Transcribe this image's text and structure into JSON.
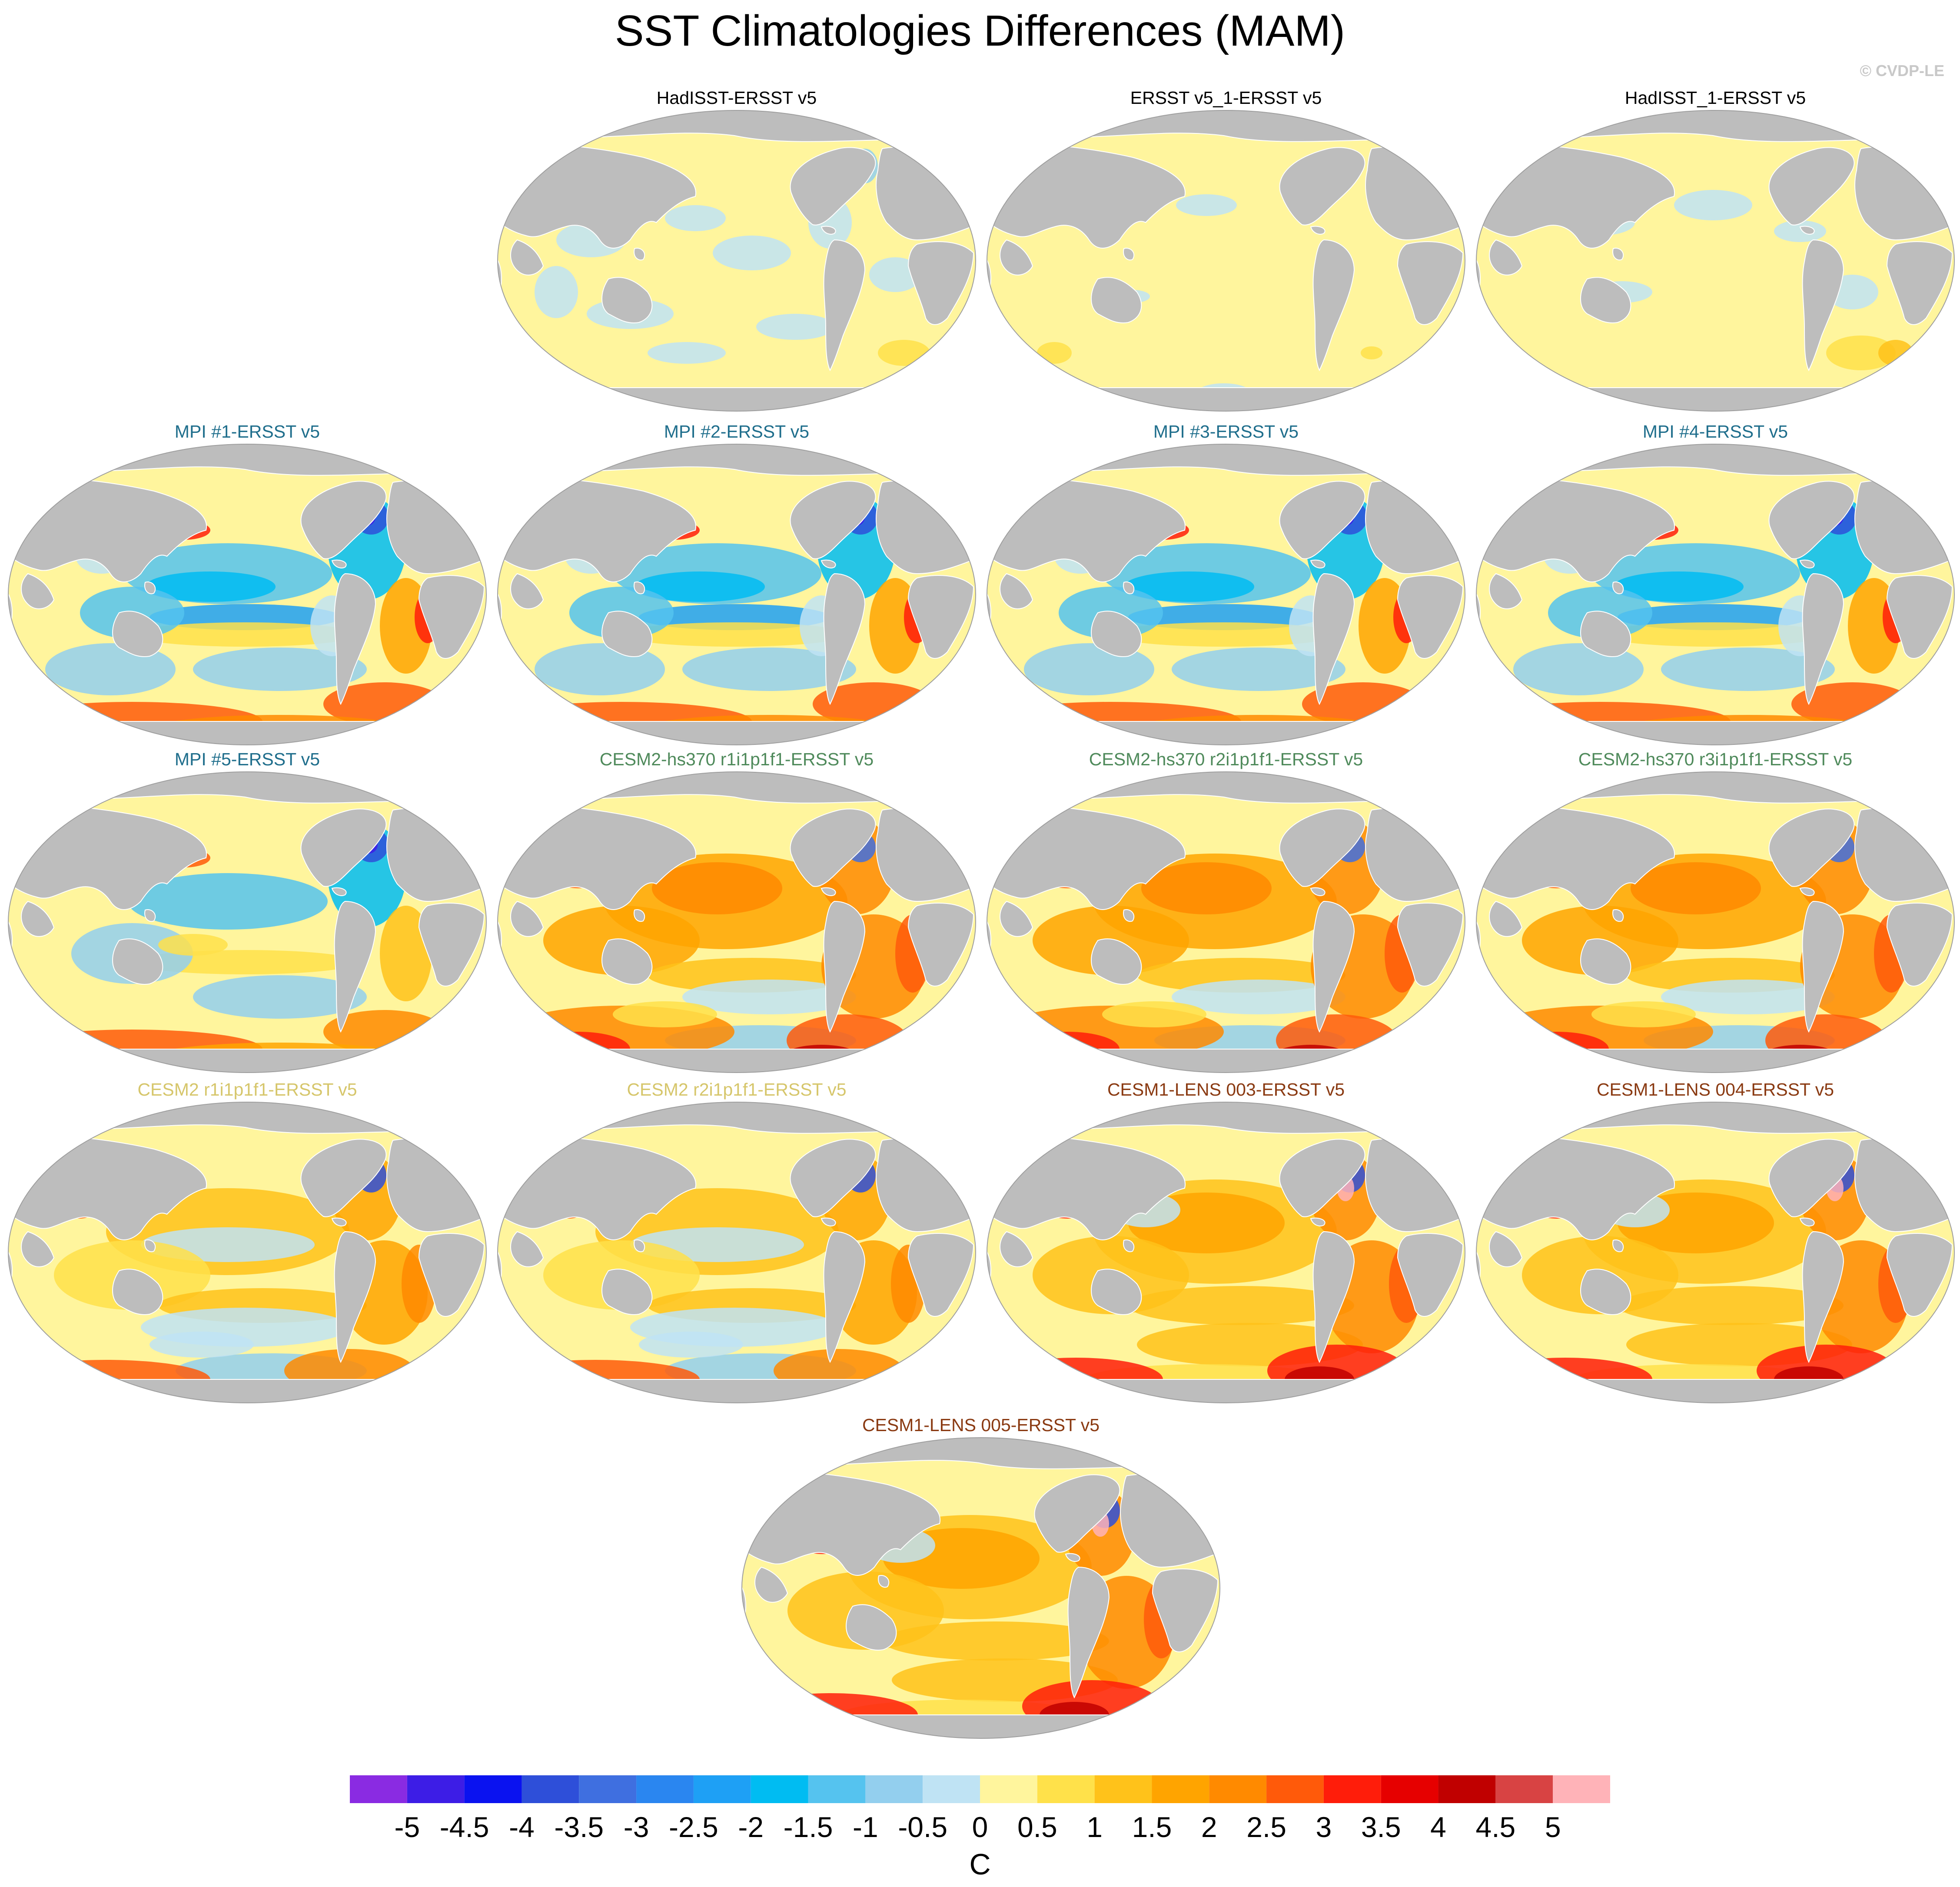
{
  "title": "SST Climatologies Differences (MAM)",
  "copyright": "© CVDP-LE",
  "colors": {
    "land": "#bdbdbd",
    "ocean_default": "#fff59d",
    "title_obs": "#000000",
    "title_mpi": "#1f6e8c",
    "title_cesm2hs": "#4f8a5b",
    "title_cesm2": "#d6c66b",
    "title_cesm1": "#8a3a12"
  },
  "panels": [
    {
      "title": "HadISST-ERSST v5",
      "group": "obs",
      "pattern": "hadisst"
    },
    {
      "title": "ERSST v5_1-ERSST v5",
      "group": "obs",
      "pattern": "ersst"
    },
    {
      "title": "HadISST_1-ERSST v5",
      "group": "obs",
      "pattern": "hadisst1"
    },
    {
      "title": "MPI #1-ERSST v5",
      "group": "mpi",
      "pattern": "mpi"
    },
    {
      "title": "MPI #2-ERSST v5",
      "group": "mpi",
      "pattern": "mpi"
    },
    {
      "title": "MPI #3-ERSST v5",
      "group": "mpi",
      "pattern": "mpi"
    },
    {
      "title": "MPI #4-ERSST v5",
      "group": "mpi",
      "pattern": "mpi"
    },
    {
      "title": "MPI #5-ERSST v5",
      "group": "mpi",
      "pattern": "mpi5"
    },
    {
      "title": "CESM2-hs370 r1i1p1f1-ERSST v5",
      "group": "cesm2hs",
      "pattern": "cesm2hs"
    },
    {
      "title": "CESM2-hs370 r2i1p1f1-ERSST v5",
      "group": "cesm2hs",
      "pattern": "cesm2hs"
    },
    {
      "title": "CESM2-hs370 r3i1p1f1-ERSST v5",
      "group": "cesm2hs",
      "pattern": "cesm2hs"
    },
    {
      "title": "CESM2 r1i1p1f1-ERSST v5",
      "group": "cesm2",
      "pattern": "cesm2"
    },
    {
      "title": "CESM2 r2i1p1f1-ERSST v5",
      "group": "cesm2",
      "pattern": "cesm2"
    },
    {
      "title": "CESM1-LENS 003-ERSST v5",
      "group": "cesm1",
      "pattern": "cesm1"
    },
    {
      "title": "CESM1-LENS 004-ERSST v5",
      "group": "cesm1",
      "pattern": "cesm1"
    },
    {
      "title": "CESM1-LENS 005-ERSST v5",
      "group": "cesm1",
      "pattern": "cesm1"
    }
  ],
  "colorbar": {
    "units": "C",
    "labels": [
      "-5",
      "-4.5",
      "-4",
      "-3.5",
      "-3",
      "-2.5",
      "-2",
      "-1.5",
      "-1",
      "-0.5",
      "0",
      "0.5",
      "1",
      "1.5",
      "2",
      "2.5",
      "3",
      "3.5",
      "4",
      "4.5",
      "5"
    ],
    "colors": [
      "#8a2be2",
      "#3d1de6",
      "#0a12f0",
      "#2e4fd9",
      "#3f6fe0",
      "#2a86f0",
      "#1ea0f5",
      "#00bcf2",
      "#55c3ef",
      "#93cfee",
      "#bfe3f4",
      "#fff59d",
      "#ffe14a",
      "#ffc21a",
      "#ffa400",
      "#ff8a00",
      "#ff5a0a",
      "#ff1d0a",
      "#e60000",
      "#c00000",
      "#d84343",
      "#ffb3b8"
    ]
  }
}
